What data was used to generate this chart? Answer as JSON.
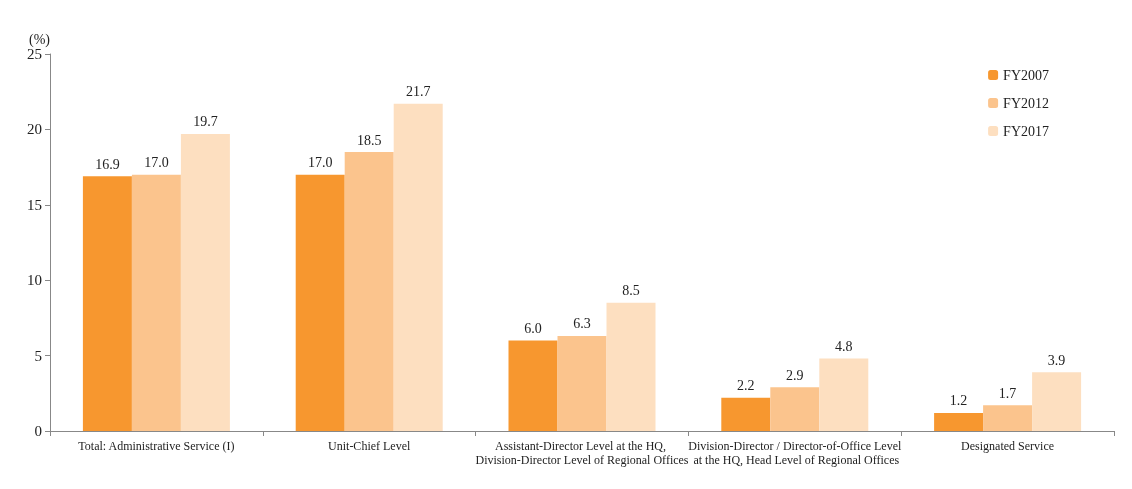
{
  "chart_data": {
    "type": "bar",
    "ylabel": "(%)",
    "categories": [
      "Total: Administrative Service (I)",
      "Unit-Chief Level",
      "Assistant-Director Level at the HQ, Division-Director Level of Regional Offices",
      "Division-Director / Director-of-Office Level at the HQ, Head Level of Regional Offices",
      "Designated Service"
    ],
    "series": [
      {
        "name": "FY2007",
        "color": "#f7972f",
        "values": [
          16.9,
          17.0,
          6.0,
          2.2,
          1.2
        ],
        "value_labels": [
          "16.9",
          "17.0",
          "6.0",
          "2.2",
          "1.2"
        ]
      },
      {
        "name": "FY2012",
        "color": "#fbc48d",
        "values": [
          17.0,
          18.5,
          6.3,
          2.9,
          1.7
        ],
        "value_labels": [
          "17.0",
          "18.5",
          "6.3",
          "2.9",
          "1.7"
        ]
      },
      {
        "name": "FY2017",
        "color": "#fddfc0",
        "values": [
          19.7,
          21.7,
          8.5,
          4.8,
          3.9
        ],
        "value_labels": [
          "19.7",
          "21.7",
          "8.5",
          "4.8",
          "3.9"
        ]
      }
    ],
    "ylim": [
      0,
      25
    ],
    "yticks": [
      0,
      5,
      10,
      15,
      20,
      25
    ],
    "grid": false,
    "legend": "top right"
  }
}
